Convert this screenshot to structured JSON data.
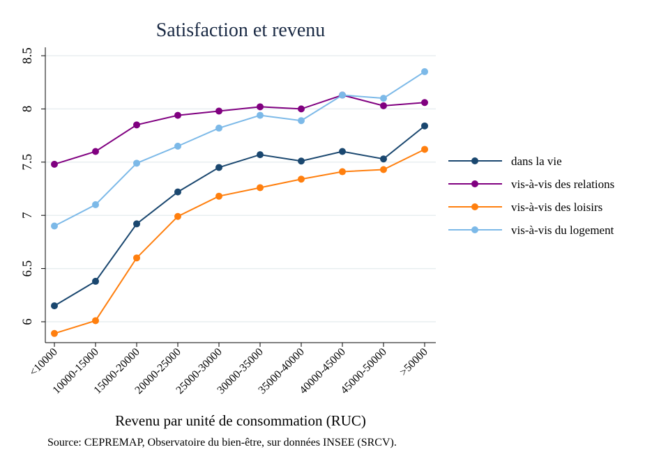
{
  "chart_data": {
    "type": "line",
    "title": "Satisfaction et revenu",
    "xlabel": "Revenu par unité de consommation (RUC)",
    "ylabel": "",
    "source": "Source: CEPREMAP, Observatoire du bien-être, sur données INSEE (SRCV).",
    "categories": [
      "<10000",
      "10000-15000",
      "15000-20000",
      "20000-25000",
      "25000-30000",
      "30000-35000",
      "35000-40000",
      "40000-45000",
      "45000-50000",
      ">50000"
    ],
    "ylim": [
      5.85,
      8.6
    ],
    "yticks": [
      "6",
      "6.5",
      "7",
      "7.5",
      "8",
      "8.5"
    ],
    "grid": true,
    "legend_position": "right",
    "series": [
      {
        "name": "dans la vie",
        "color": "#1a476f",
        "values": [
          6.15,
          6.38,
          6.92,
          7.22,
          7.45,
          7.57,
          7.51,
          7.6,
          7.53,
          7.84
        ]
      },
      {
        "name": "vis-à-vis des relations",
        "color": "#800080",
        "values": [
          7.48,
          7.6,
          7.85,
          7.94,
          7.98,
          8.02,
          8.0,
          8.13,
          8.03,
          8.06
        ]
      },
      {
        "name": "vis-à-vis des loisirs",
        "color": "#ff7f0e",
        "values": [
          5.89,
          6.01,
          6.6,
          6.99,
          7.18,
          7.26,
          7.34,
          7.41,
          7.43,
          7.62
        ]
      },
      {
        "name": "vis-à-vis du logement",
        "color": "#7cb9e8",
        "values": [
          6.9,
          7.1,
          7.49,
          7.65,
          7.82,
          7.94,
          7.89,
          8.13,
          8.1,
          8.35
        ]
      }
    ]
  }
}
